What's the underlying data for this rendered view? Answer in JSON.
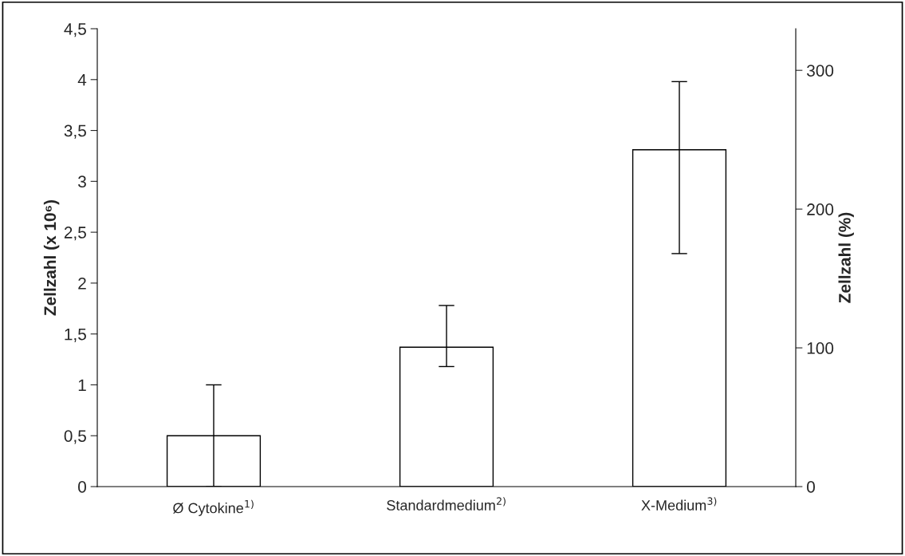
{
  "chart_data": {
    "type": "bar",
    "categories": [
      "Ø Cytokine$^{1)}$",
      "Standardmedium$^{2)}$",
      "X-Medium$^{3)}$"
    ],
    "series": [
      {
        "color": "#ffffff",
        "values": [
          0.5,
          1.37,
          3.31
        ],
        "errors": [
          0.5,
          [
            1.18,
            1.78
          ],
          [
            2.29,
            3.98
          ]
        ]
      }
    ],
    "ylabel": "Zellzahl (x 10⁶)",
    "y2label": "Zellzahl (%)",
    "ylim": [
      0,
      4.5
    ],
    "yticks": [
      0,
      {
        "value": 0.5,
        "label": "0,5"
      },
      1,
      {
        "value": 1.5,
        "label": "1,5"
      },
      2,
      {
        "value": 2.5,
        "label": "2,5"
      },
      3,
      {
        "value": 3.5,
        "label": "3,5"
      },
      4,
      {
        "value": 4.5,
        "label": "4,5"
      }
    ],
    "y2lim": [
      0,
      330
    ],
    "y2ticks": [
      0,
      100,
      200,
      300
    ],
    "grid": false,
    "legend": false
  }
}
